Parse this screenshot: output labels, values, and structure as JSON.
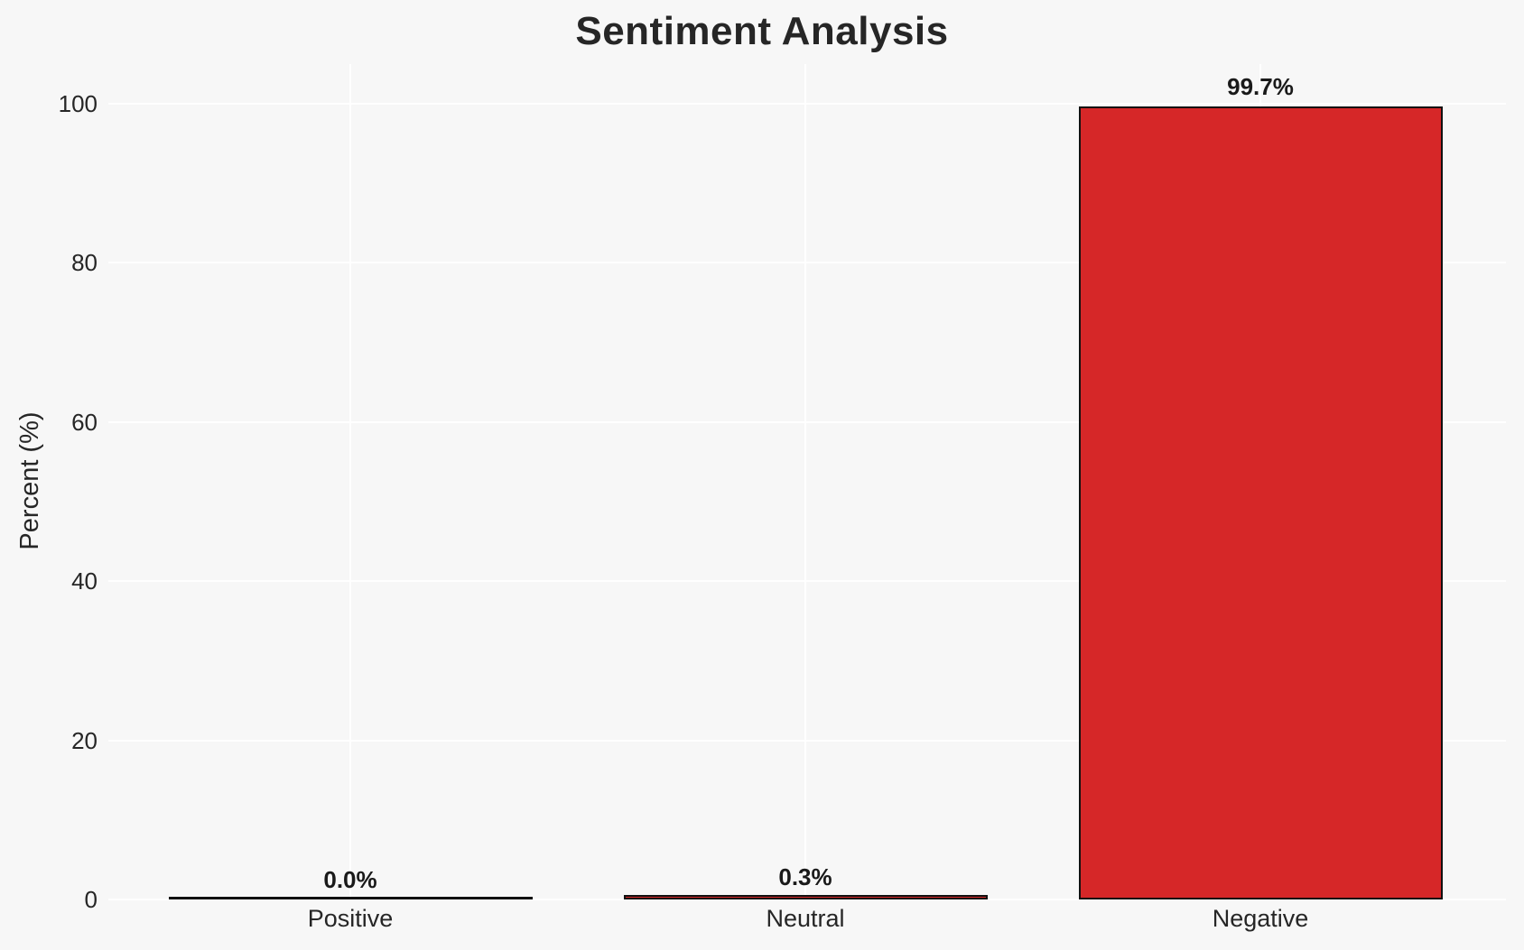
{
  "chart_data": {
    "type": "bar",
    "title": "Sentiment Analysis",
    "xlabel": "",
    "ylabel": "Percent (%)",
    "categories": [
      "Positive",
      "Neutral",
      "Negative"
    ],
    "values": [
      0.0,
      0.3,
      99.7
    ],
    "value_labels": [
      "0.0%",
      "0.3%",
      "99.7%"
    ],
    "yticks": [
      0,
      20,
      40,
      60,
      80,
      100
    ],
    "ylim": [
      0,
      105
    ],
    "grid": "on",
    "legend": "none",
    "colors": {
      "background": "#f7f7f7",
      "gridline": "#ffffff",
      "bar_fill": "#d62728",
      "bar_edge": "#111111",
      "title_text": "#262626",
      "tick_text": "#262626",
      "value_label_text": "#1a1a1a"
    }
  }
}
